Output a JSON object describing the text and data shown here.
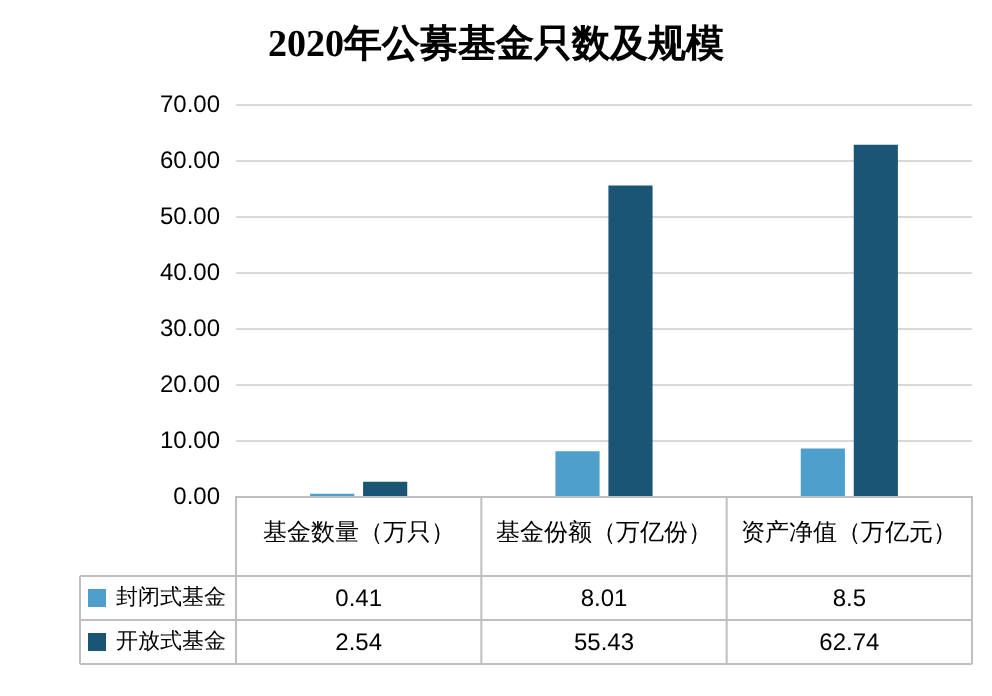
{
  "chart_data": {
    "type": "bar",
    "title": "2020年公募基金只数及规模",
    "categories": [
      "基金数量（万只）",
      "基金份额（万亿份）",
      "资产净值（万亿元）"
    ],
    "series": [
      {
        "name": "封闭式基金",
        "color": "#4f9fcc",
        "values": [
          0.41,
          8.01,
          8.5
        ]
      },
      {
        "name": "开放式基金",
        "color": "#1b5576",
        "values": [
          2.54,
          55.43,
          62.74
        ]
      }
    ],
    "ylim": [
      0,
      70
    ],
    "yticks": [
      {
        "value": 0,
        "label": "0.00"
      },
      {
        "value": 10,
        "label": "10.00"
      },
      {
        "value": 20,
        "label": "20.00"
      },
      {
        "value": 30,
        "label": "30.00"
      },
      {
        "value": 40,
        "label": "40.00"
      },
      {
        "value": 50,
        "label": "50.00"
      },
      {
        "value": 60,
        "label": "60.00"
      },
      {
        "value": 70,
        "label": "70.00"
      }
    ],
    "grid": "y",
    "legend": "bottom left",
    "data_labels": true
  }
}
